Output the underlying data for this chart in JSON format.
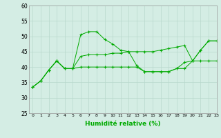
{
  "title": "",
  "xlabel": "Humidité relative (%)",
  "ylabel": "",
  "background_color": "#d4ede4",
  "grid_color": "#b8d8cc",
  "line_color": "#00aa00",
  "marker_color": "#00aa00",
  "xlim": [
    -0.5,
    23
  ],
  "ylim": [
    25,
    60
  ],
  "yticks": [
    25,
    30,
    35,
    40,
    45,
    50,
    55,
    60
  ],
  "xticks": [
    0,
    1,
    2,
    3,
    4,
    5,
    6,
    7,
    8,
    9,
    10,
    11,
    12,
    13,
    14,
    15,
    16,
    17,
    18,
    19,
    20,
    21,
    22,
    23
  ],
  "series": [
    [
      33.5,
      35.5,
      39.0,
      42.0,
      39.5,
      39.5,
      50.5,
      51.5,
      51.5,
      49.0,
      47.5,
      45.5,
      45.0,
      40.5,
      38.5,
      38.5,
      38.5,
      38.5,
      39.5,
      41.5,
      42.0,
      45.5,
      48.5,
      48.5
    ],
    [
      33.5,
      35.5,
      39.0,
      42.0,
      39.5,
      39.5,
      43.5,
      44.0,
      44.0,
      44.0,
      44.5,
      44.5,
      45.0,
      45.0,
      45.0,
      45.0,
      45.5,
      46.0,
      46.5,
      47.0,
      42.0,
      45.5,
      48.5,
      48.5
    ],
    [
      33.5,
      35.5,
      39.0,
      42.0,
      39.5,
      39.5,
      40.0,
      40.0,
      40.0,
      40.0,
      40.0,
      40.0,
      40.0,
      40.0,
      38.5,
      38.5,
      38.5,
      38.5,
      39.5,
      39.5,
      42.0,
      42.0,
      42.0,
      42.0
    ]
  ]
}
